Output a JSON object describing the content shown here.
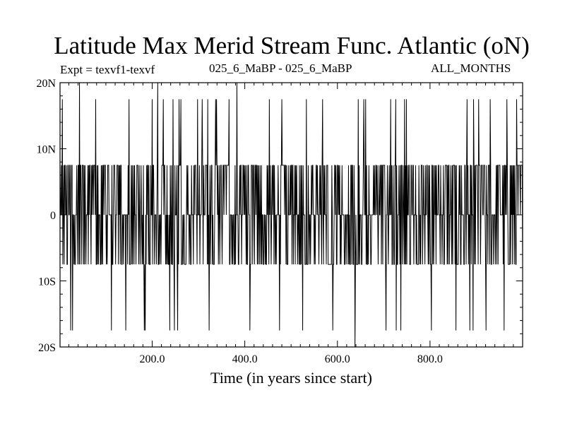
{
  "chart_data": {
    "type": "line",
    "title": "Latitude Max Merid Stream Func. Atlantic (oN)",
    "subtitle_left": "Expt = texvf1-texvf",
    "subtitle_center": "025_6_MaBP - 025_6_MaBP",
    "subtitle_right": "ALL_MONTHS",
    "xlabel": "Time (in years since start)",
    "ylabel": "",
    "xlim": [
      1,
      1000
    ],
    "ylim": [
      -20,
      20
    ],
    "xticks": [
      {
        "value": 200,
        "label": "200.0"
      },
      {
        "value": 400,
        "label": "400.0"
      },
      {
        "value": 600,
        "label": "600.0"
      },
      {
        "value": 800,
        "label": "800.0"
      }
    ],
    "yticks": [
      {
        "value": 20,
        "label": "20N"
      },
      {
        "value": 10,
        "label": "10N"
      },
      {
        "value": 0,
        "label": "0"
      },
      {
        "value": -10,
        "label": "10S"
      },
      {
        "value": -20,
        "label": "20S"
      }
    ],
    "levels": [
      -17.5,
      -7.5,
      0,
      7.5,
      17.5,
      20
    ],
    "spikes": [
      {
        "x": 43,
        "y": 20
      },
      {
        "x": 212,
        "y": 20
      },
      {
        "x": 383,
        "y": 20
      },
      {
        "x": 638,
        "y": -20
      },
      {
        "x": 28,
        "y": -17.5
      },
      {
        "x": 112,
        "y": -17.5
      },
      {
        "x": 183,
        "y": -17.5
      },
      {
        "x": 255,
        "y": -17.5
      },
      {
        "x": 475,
        "y": -17.5
      },
      {
        "x": 590,
        "y": -17.5
      },
      {
        "x": 705,
        "y": -17.5
      },
      {
        "x": 803,
        "y": -17.5
      },
      {
        "x": 960,
        "y": -17.5
      },
      {
        "x": 78,
        "y": 17.5
      },
      {
        "x": 150,
        "y": 17.5
      },
      {
        "x": 262,
        "y": 17.5
      },
      {
        "x": 337,
        "y": 17.5
      },
      {
        "x": 480,
        "y": 17.5
      },
      {
        "x": 568,
        "y": 17.5
      },
      {
        "x": 645,
        "y": 17.5
      },
      {
        "x": 880,
        "y": 17.5
      },
      {
        "x": 930,
        "y": 17.5
      }
    ],
    "n_points": 1000,
    "seed": 20250,
    "line_color": "#000000",
    "grid": false
  }
}
